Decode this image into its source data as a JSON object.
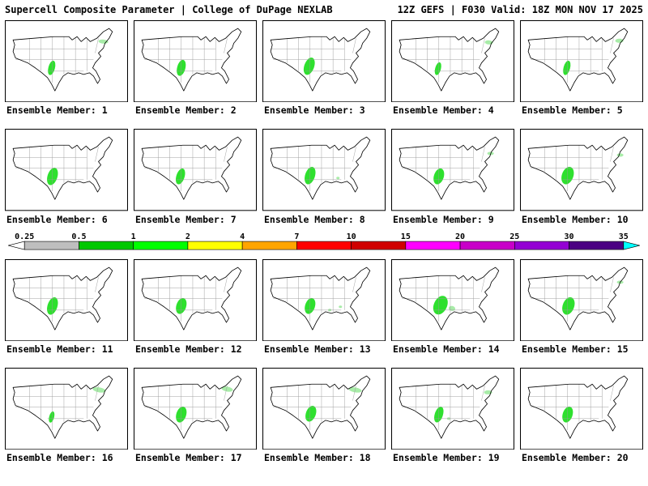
{
  "header": {
    "left": "Supercell Composite Parameter | College of DuPage NEXLAB",
    "right": "12Z GEFS | F030 Valid: 18Z MON NOV 17 2025"
  },
  "colorbar": {
    "ticks": [
      "0.25",
      "0.5",
      "1",
      "2",
      "4",
      "7",
      "10",
      "15",
      "20",
      "25",
      "30",
      "35"
    ],
    "segment_colors": [
      "#bebebe",
      "#00c800",
      "#00ff00",
      "#ffff00",
      "#ffa500",
      "#ff0000",
      "#d00000",
      "#ff00ff",
      "#c800c8",
      "#9400d3",
      "#4b0082"
    ],
    "arrow_left_color": "#ffffff",
    "arrow_right_color": "#00ffff"
  },
  "map_colors": {
    "outline": "#000000",
    "state_lines": "#9a9a9a",
    "panel_border": "#000000",
    "green_main": "#2ee02e",
    "green_light": "#a8eca8"
  },
  "members": [
    {
      "label": "Ensemble Member: 1",
      "blobs": [
        [
          57,
          58,
          4,
          9,
          15,
          "g"
        ],
        [
          120,
          26,
          6,
          2.5,
          5,
          "l"
        ]
      ]
    },
    {
      "label": "Ensemble Member: 2",
      "blobs": [
        [
          58,
          58,
          5,
          10,
          15,
          "g"
        ]
      ]
    },
    {
      "label": "Ensemble Member: 3",
      "blobs": [
        [
          57,
          56,
          6,
          11,
          20,
          "g"
        ]
      ]
    },
    {
      "label": "Ensemble Member: 4",
      "blobs": [
        [
          57,
          59,
          3.5,
          8,
          15,
          "g"
        ],
        [
          119,
          27,
          5,
          2.5,
          5,
          "l"
        ]
      ]
    },
    {
      "label": "Ensemble Member: 5",
      "blobs": [
        [
          57,
          58,
          4,
          9,
          15,
          "g"
        ],
        [
          121,
          25,
          5,
          2.5,
          0,
          "l"
        ]
      ]
    },
    {
      "label": "Ensemble Member: 6",
      "blobs": [
        [
          58,
          58,
          6,
          11,
          18,
          "g"
        ]
      ]
    },
    {
      "label": "Ensemble Member: 7",
      "blobs": [
        [
          57,
          58,
          5,
          10,
          18,
          "g"
        ]
      ]
    },
    {
      "label": "Ensemble Member: 8",
      "blobs": [
        [
          58,
          57,
          6,
          11,
          18,
          "g"
        ],
        [
          92,
          60,
          2,
          1.5,
          0,
          "l"
        ]
      ]
    },
    {
      "label": "Ensemble Member: 9",
      "blobs": [
        [
          58,
          58,
          6,
          10,
          18,
          "g"
        ],
        [
          121,
          30,
          4,
          2,
          0,
          "l"
        ]
      ]
    },
    {
      "label": "Ensemble Member: 10",
      "blobs": [
        [
          58,
          57,
          7,
          11,
          20,
          "g"
        ],
        [
          122,
          32,
          4,
          2,
          0,
          "l"
        ]
      ]
    },
    {
      "label": "Ensemble Member: 11",
      "blobs": [
        [
          58,
          57,
          6,
          11,
          18,
          "g"
        ]
      ]
    },
    {
      "label": "Ensemble Member: 12",
      "blobs": [
        [
          58,
          57,
          6,
          10,
          18,
          "g"
        ]
      ]
    },
    {
      "label": "Ensemble Member: 13",
      "blobs": [
        [
          58,
          57,
          6,
          10,
          18,
          "g"
        ],
        [
          82,
          62,
          2,
          1.5,
          0,
          "l"
        ],
        [
          95,
          58,
          2,
          1.5,
          0,
          "l"
        ]
      ]
    },
    {
      "label": "Ensemble Member: 14",
      "blobs": [
        [
          60,
          56,
          8,
          12,
          25,
          "g"
        ],
        [
          74,
          60,
          4,
          3,
          10,
          "l"
        ]
      ]
    },
    {
      "label": "Ensemble Member: 15",
      "blobs": [
        [
          59,
          57,
          7,
          11,
          20,
          "g"
        ],
        [
          122,
          28,
          4,
          2,
          0,
          "l"
        ]
      ]
    },
    {
      "label": "Ensemble Member: 16",
      "blobs": [
        [
          57,
          60,
          3,
          7,
          15,
          "g"
        ],
        [
          115,
          27,
          8,
          3,
          10,
          "l"
        ]
      ]
    },
    {
      "label": "Ensemble Member: 17",
      "blobs": [
        [
          58,
          57,
          6,
          10,
          18,
          "g"
        ],
        [
          114,
          26,
          7,
          3,
          10,
          "l"
        ]
      ]
    },
    {
      "label": "Ensemble Member: 18",
      "blobs": [
        [
          59,
          56,
          6,
          10,
          20,
          "g"
        ],
        [
          113,
          27,
          8,
          3,
          10,
          "l"
        ]
      ]
    },
    {
      "label": "Ensemble Member: 19",
      "blobs": [
        [
          58,
          57,
          5,
          10,
          18,
          "g"
        ],
        [
          118,
          30,
          5,
          2.5,
          0,
          "l"
        ],
        [
          70,
          62,
          2,
          1.5,
          0,
          "l"
        ]
      ]
    },
    {
      "label": "Ensemble Member: 20",
      "blobs": [
        [
          58,
          57,
          6,
          10,
          18,
          "g"
        ]
      ]
    }
  ]
}
